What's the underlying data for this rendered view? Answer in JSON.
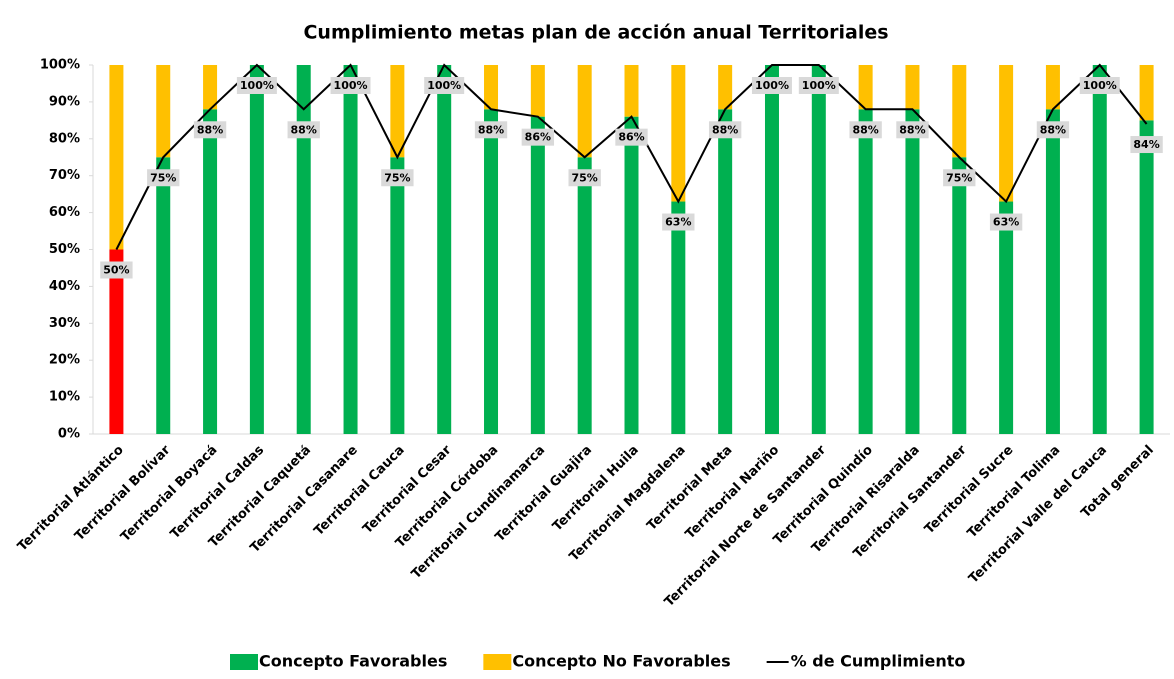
{
  "chart_data": {
    "type": "bar-line",
    "title": "Cumplimiento metas plan de acción anual Territoriales",
    "stacked": true,
    "categories": [
      "Territorial Atlántico",
      "Territorial Bolívar",
      "Territorial Boyacá",
      "Territorial Caldas",
      "Territorial Caquetá",
      "Territorial Casanare",
      "Territorial Cauca",
      "Territorial Cesar",
      "Territorial Córdoba",
      "Territorial Cundinamarca",
      "Territorial Guajira",
      "Territorial Huila",
      "Territorial Magdalena",
      "Territorial Meta",
      "Territorial Nariño",
      "Territorial Norte de Santander",
      "Territorial Quindío",
      "Territorial Risaralda",
      "Territorial Santander",
      "Territorial Sucre",
      "Territorial Tolima",
      "Territorial Valle del Cauca",
      "Total general"
    ],
    "series": [
      {
        "name": "Concepto Favorables",
        "type": "bar",
        "color": "#00b050",
        "colors": [
          "#ff0000",
          "#00b050",
          "#00b050",
          "#00b050",
          "#00b050",
          "#00b050",
          "#00b050",
          "#00b050",
          "#00b050",
          "#00b050",
          "#00b050",
          "#00b050",
          "#00b050",
          "#00b050",
          "#00b050",
          "#00b050",
          "#00b050",
          "#00b050",
          "#00b050",
          "#00b050",
          "#00b050",
          "#00b050",
          "#00b050"
        ],
        "values": [
          50,
          75,
          88,
          100,
          100,
          100,
          75,
          100,
          88,
          86,
          75,
          86,
          63,
          88,
          100,
          100,
          88,
          88,
          75,
          63,
          88,
          100,
          85
        ]
      },
      {
        "name": "Concepto No Favorables",
        "type": "bar",
        "color": "#ffc000",
        "values": [
          50,
          25,
          12,
          0,
          0,
          0,
          25,
          0,
          12,
          14,
          25,
          14,
          37,
          12,
          0,
          0,
          12,
          12,
          25,
          37,
          12,
          0,
          15
        ]
      },
      {
        "name": "% de Cumplimiento",
        "type": "line",
        "color": "#000000",
        "values": [
          50,
          75,
          88,
          100,
          88,
          100,
          75,
          100,
          88,
          86,
          75,
          86,
          63,
          88,
          100,
          100,
          88,
          88,
          75,
          63,
          88,
          100,
          84
        ],
        "value_labels": [
          "50%",
          "75%",
          "88%",
          "100%",
          "88%",
          "100%",
          "75%",
          "100%",
          "88%",
          "86%",
          "75%",
          "86%",
          "63%",
          "88%",
          "100%",
          "100%",
          "88%",
          "88%",
          "75%",
          "63%",
          "88%",
          "100%",
          "84%"
        ]
      }
    ],
    "ylim": [
      0,
      100
    ],
    "yticks": [
      {
        "value": 0,
        "label": "0%"
      },
      {
        "value": 10,
        "label": "10%"
      },
      {
        "value": 20,
        "label": "20%"
      },
      {
        "value": 30,
        "label": "30%"
      },
      {
        "value": 40,
        "label": "40%"
      },
      {
        "value": 50,
        "label": "50%"
      },
      {
        "value": 60,
        "label": "60%"
      },
      {
        "value": 70,
        "label": "70%"
      },
      {
        "value": 80,
        "label": "80%"
      },
      {
        "value": 90,
        "label": "90%"
      },
      {
        "value": 100,
        "label": "100%"
      }
    ],
    "grid": false,
    "legend": "bottom"
  }
}
